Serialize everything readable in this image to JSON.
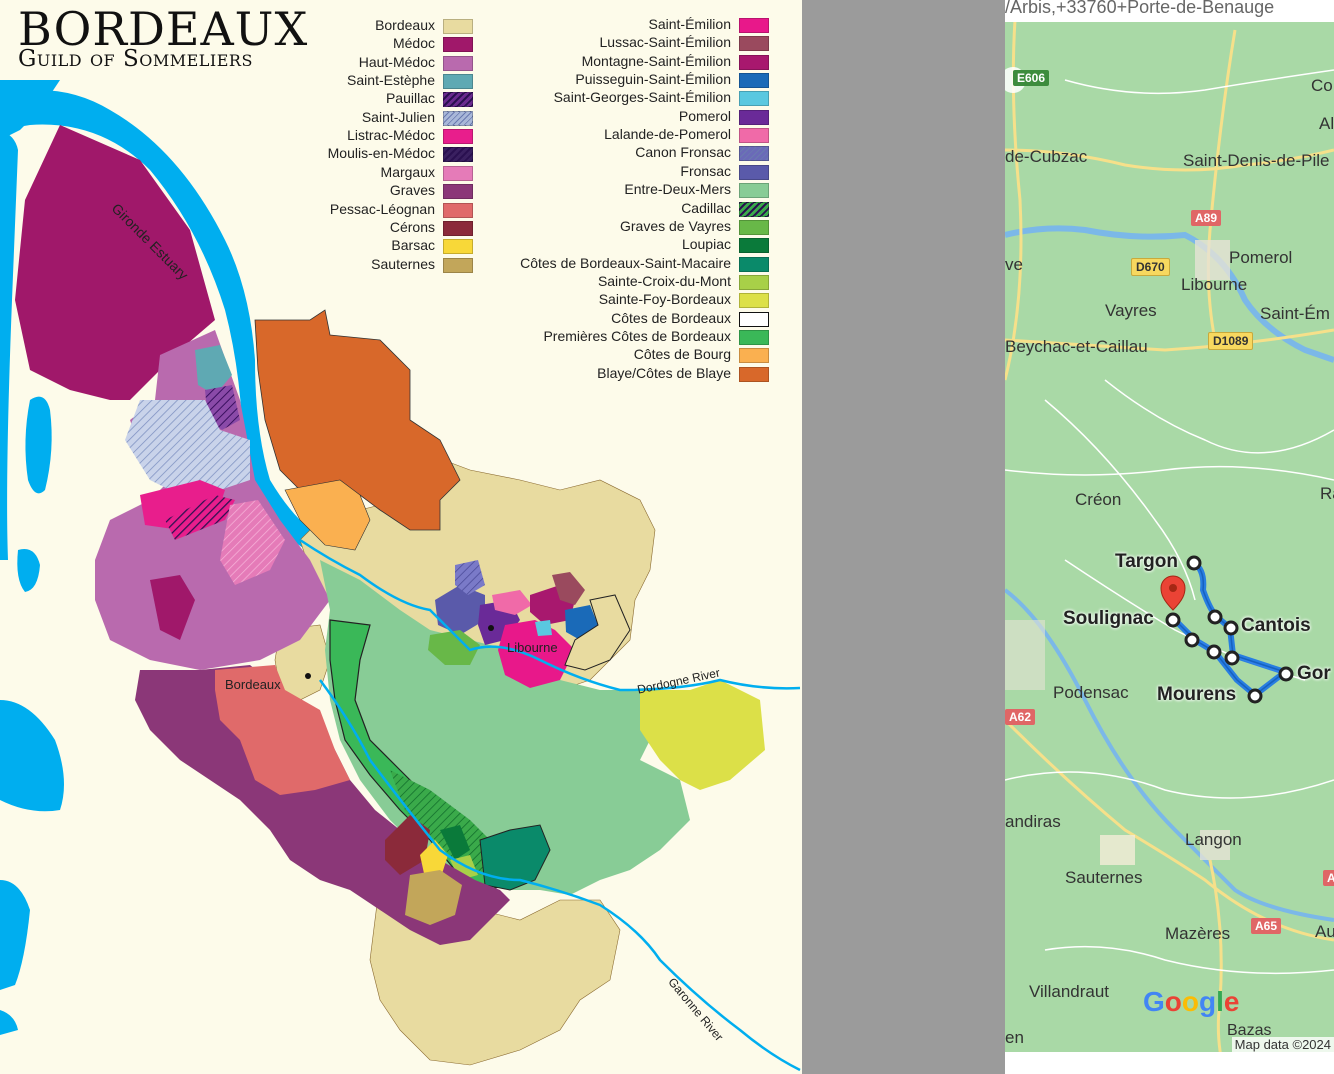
{
  "left_map": {
    "title": "Bordeaux",
    "subtitle": "Guild of Sommeliers",
    "legend_left": [
      {
        "label": "Bordeaux",
        "color": "#e8dba0",
        "pattern": "solid"
      },
      {
        "label": "Médoc",
        "color": "#a0186a",
        "pattern": "solid"
      },
      {
        "label": "Haut-Médoc",
        "color": "#b96aae",
        "pattern": "solid"
      },
      {
        "label": "Saint-Estèphe",
        "color": "#5fa9b3",
        "pattern": "solid"
      },
      {
        "label": "Pauillac",
        "color": "#6a2a8e",
        "pattern": "hatch-dark"
      },
      {
        "label": "Saint-Julien",
        "color": "#a8b7d8",
        "pattern": "hatch-light"
      },
      {
        "label": "Listrac-Médoc",
        "color": "#e81e8c",
        "pattern": "solid"
      },
      {
        "label": "Moulis-en-Médoc",
        "color": "#3a2060",
        "pattern": "hatch-dark"
      },
      {
        "label": "Margaux",
        "color": "#e57bb8",
        "pattern": "solid"
      },
      {
        "label": "Graves",
        "color": "#8b3778",
        "pattern": "solid"
      },
      {
        "label": "Pessac-Léognan",
        "color": "#e06a6a",
        "pattern": "solid"
      },
      {
        "label": "Cérons",
        "color": "#8b2a3a",
        "pattern": "solid"
      },
      {
        "label": "Barsac",
        "color": "#f8d838",
        "pattern": "solid"
      },
      {
        "label": "Sauternes",
        "color": "#c2a65a",
        "pattern": "solid"
      }
    ],
    "legend_right": [
      {
        "label": "Saint-Émilion",
        "color": "#e8188a",
        "pattern": "solid"
      },
      {
        "label": "Lussac-Saint-Émilion",
        "color": "#9a4a5e",
        "pattern": "solid"
      },
      {
        "label": "Montagne-Saint-Émilion",
        "color": "#a8186e",
        "pattern": "solid"
      },
      {
        "label": "Puisseguin-Saint-Émilion",
        "color": "#1a6ab8",
        "pattern": "solid"
      },
      {
        "label": "Saint-Georges-Saint-Émilion",
        "color": "#5ac8e0",
        "pattern": "solid"
      },
      {
        "label": "Pomerol",
        "color": "#6a2a98",
        "pattern": "solid"
      },
      {
        "label": "Lalande-de-Pomerol",
        "color": "#f06aa8",
        "pattern": "solid"
      },
      {
        "label": "Canon Fronsac",
        "color": "#6a6ab8",
        "pattern": "hatch-light"
      },
      {
        "label": "Fronsac",
        "color": "#5a5aaa",
        "pattern": "solid"
      },
      {
        "label": "Entre-Deux-Mers",
        "color": "#88cc96",
        "pattern": "solid"
      },
      {
        "label": "Cadillac",
        "color": "#3aaa4a",
        "pattern": "hatch-dark"
      },
      {
        "label": "Graves de Vayres",
        "color": "#68b848",
        "pattern": "solid"
      },
      {
        "label": "Loupiac",
        "color": "#0a7a3a",
        "pattern": "solid"
      },
      {
        "label": "Côtes de Bordeaux-Saint-Macaire",
        "color": "#0a8a6a",
        "pattern": "solid"
      },
      {
        "label": "Sainte-Croix-du-Mont",
        "color": "#a8d048",
        "pattern": "solid"
      },
      {
        "label": "Sainte-Foy-Bordeaux",
        "color": "#dce048",
        "pattern": "solid"
      },
      {
        "label": "Côtes de Bordeaux",
        "color": "#ffffff",
        "pattern": "outline"
      },
      {
        "label": "Premières Côtes de Bordeaux",
        "color": "#3ab858",
        "pattern": "solid"
      },
      {
        "label": "Côtes de Bourg",
        "color": "#fab050",
        "pattern": "solid"
      },
      {
        "label": "Blaye/Côtes de Blaye",
        "color": "#d8682a",
        "pattern": "solid"
      }
    ],
    "labels": {
      "gironde": "Gironde Estuary",
      "dordogne": "Dordogne River",
      "garonne": "Garonne River",
      "bordeaux_city": "Bordeaux",
      "libourne_city": "Libourne"
    }
  },
  "right_map": {
    "url_text": "/Arbis,+33760+Porte-de-Benauge",
    "places": [
      {
        "id": "co",
        "text": "Co",
        "bold": false
      },
      {
        "id": "al",
        "text": "Al",
        "bold": false
      },
      {
        "id": "cubzac",
        "text": "de-Cubzac",
        "bold": false
      },
      {
        "id": "saintdenis",
        "text": "Saint-Denis-de-Pile",
        "bold": false
      },
      {
        "id": "pomerol",
        "text": "Pomerol",
        "bold": false
      },
      {
        "id": "libourne",
        "text": "Libourne",
        "bold": false
      },
      {
        "id": "ve",
        "text": "ve",
        "bold": false
      },
      {
        "id": "vayres",
        "text": "Vayres",
        "bold": false
      },
      {
        "id": "saintem",
        "text": "Saint-Ém",
        "bold": false
      },
      {
        "id": "beychac",
        "text": "Beychac-et-Caillau",
        "bold": false
      },
      {
        "id": "ra",
        "text": "Ra",
        "bold": false
      },
      {
        "id": "creon",
        "text": "Créon",
        "bold": false
      },
      {
        "id": "targon",
        "text": "Targon",
        "bold": true
      },
      {
        "id": "soulignac",
        "text": "Soulignac",
        "bold": true
      },
      {
        "id": "cantois",
        "text": "Cantois",
        "bold": true
      },
      {
        "id": "gor",
        "text": "Gor",
        "bold": true
      },
      {
        "id": "podensac",
        "text": "Podensac",
        "bold": false
      },
      {
        "id": "mourens",
        "text": "Mourens",
        "bold": true
      },
      {
        "id": "andiras",
        "text": "andiras",
        "bold": false
      },
      {
        "id": "langon",
        "text": "Langon",
        "bold": false
      },
      {
        "id": "sauternes",
        "text": "Sauternes",
        "bold": false
      },
      {
        "id": "mazeres",
        "text": "Mazères",
        "bold": false
      },
      {
        "id": "aur",
        "text": "Aur",
        "bold": false
      },
      {
        "id": "villandraut",
        "text": "Villandraut",
        "bold": false
      },
      {
        "id": "bazas",
        "text": "Bazas",
        "bold": false
      },
      {
        "id": "en",
        "text": "en",
        "bold": false
      }
    ],
    "roads": [
      {
        "id": "e606",
        "text": "E606",
        "style": "grn"
      },
      {
        "id": "a89",
        "text": "A89",
        "style": "red"
      },
      {
        "id": "d670",
        "text": "D670",
        "style": "yel"
      },
      {
        "id": "d1089",
        "text": "D1089",
        "style": "yel"
      },
      {
        "id": "a62",
        "text": "A62",
        "style": "red"
      },
      {
        "id": "a65",
        "text": "A65",
        "style": "red"
      },
      {
        "id": "a_edge",
        "text": "A",
        "style": "red"
      }
    ],
    "google_logo": "Google",
    "copyright": "Map data ©2024"
  }
}
